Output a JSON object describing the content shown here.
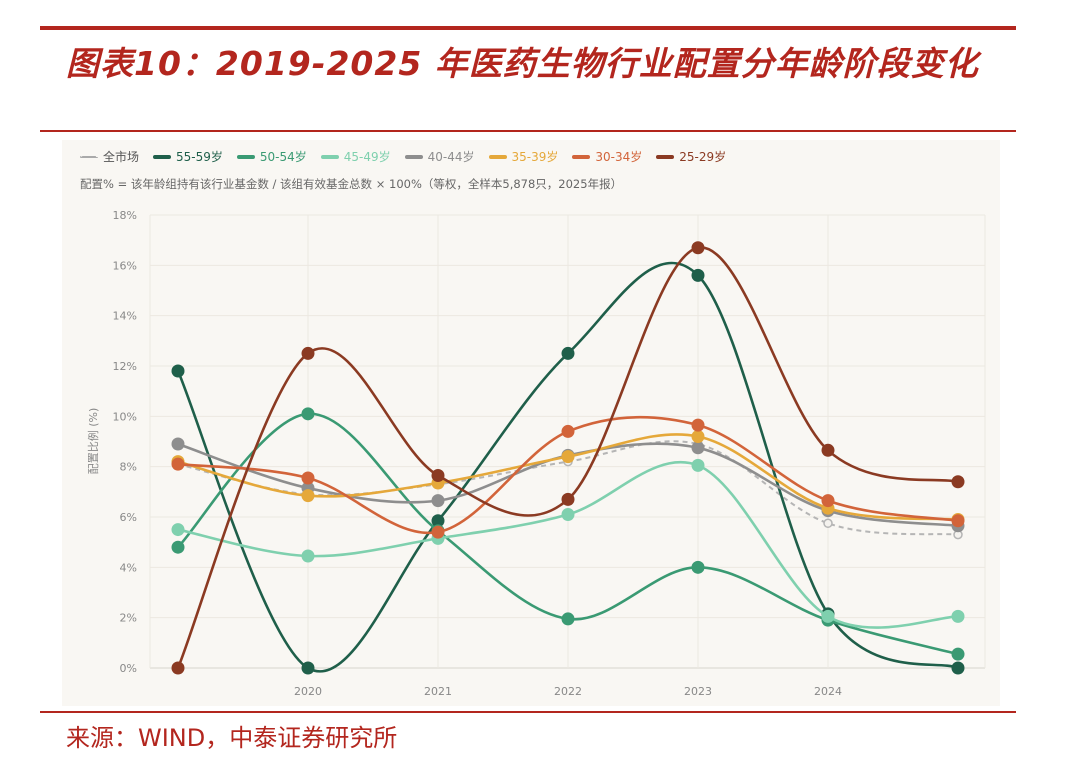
{
  "title": "图表10：2019-2025 年医药生物行业配置分年龄阶段变化",
  "source": "来源：WIND，中泰证券研究所",
  "chart_data": {
    "type": "line",
    "note": "配置% = 该年龄组持有该行业基金数 / 该组有效基金总数 × 100%（等权，全样本5,878只，2025年报）",
    "ylabel": "配置比例 (%)",
    "xlabel": "",
    "x": [
      2019,
      2020,
      2021,
      2022,
      2023,
      2024,
      2025
    ],
    "x_tick_labels": [
      "2020",
      "2021",
      "2022",
      "2023",
      "2024"
    ],
    "y_tick_labels": [
      "0%",
      "2%",
      "4%",
      "6%",
      "8%",
      "10%",
      "12%",
      "14%",
      "16%",
      "18%"
    ],
    "ylim": [
      0,
      18
    ],
    "grid": true,
    "legend_position": "top-left",
    "smooth": true,
    "series": [
      {
        "name": "全市场",
        "color": "#b5b5b5",
        "dashed": true,
        "values": [
          8.1,
          6.9,
          7.3,
          8.2,
          8.9,
          5.75,
          5.3
        ]
      },
      {
        "name": "55-59岁",
        "color": "#1f5f4a",
        "values": [
          11.8,
          0,
          5.85,
          12.5,
          15.6,
          2.15,
          0
        ]
      },
      {
        "name": "50-54岁",
        "color": "#3a9a73",
        "values": [
          4.8,
          10.1,
          5.45,
          1.95,
          4.0,
          1.9,
          0.55
        ]
      },
      {
        "name": "45-49岁",
        "color": "#7fd0ae",
        "values": [
          5.5,
          4.45,
          5.15,
          6.1,
          8.05,
          2.05,
          2.05
        ]
      },
      {
        "name": "40-44岁",
        "color": "#8e8e8e",
        "values": [
          8.9,
          7.15,
          6.65,
          8.45,
          8.75,
          6.25,
          5.65
        ]
      },
      {
        "name": "35-39岁",
        "color": "#e5a83a",
        "values": [
          8.2,
          6.85,
          7.35,
          8.4,
          9.2,
          6.35,
          5.9
        ]
      },
      {
        "name": "30-34岁",
        "color": "#d2643a",
        "values": [
          8.1,
          7.55,
          5.4,
          9.4,
          9.65,
          6.65,
          5.85
        ]
      },
      {
        "name": "25-29岁",
        "color": "#8b3a22",
        "values": [
          0,
          12.5,
          7.65,
          6.7,
          16.7,
          8.65,
          7.4
        ]
      }
    ]
  }
}
